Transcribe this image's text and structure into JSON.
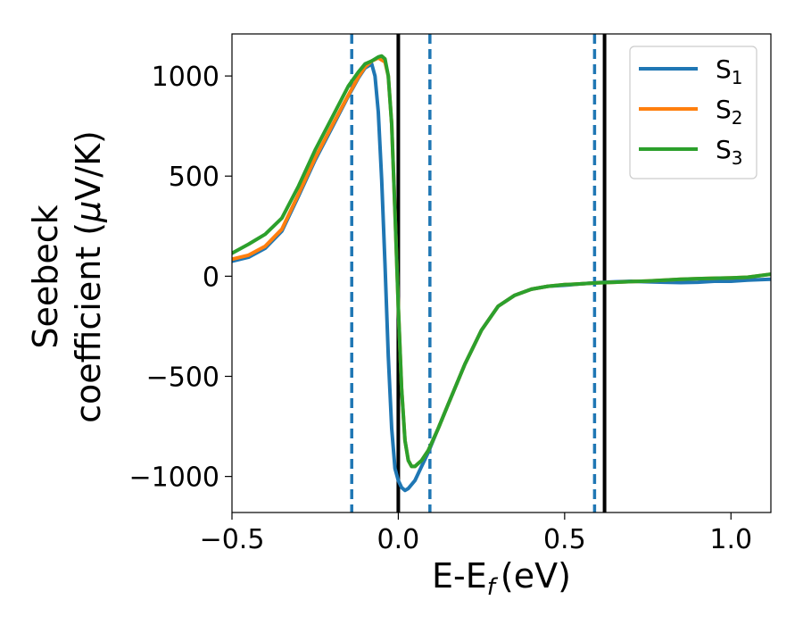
{
  "chart_data": {
    "type": "line",
    "title": "",
    "xlabel": "E-E",
    "xlabel_sub": "f",
    "xlabel_unit": "(eV)",
    "ylabel_line1": "Seebeck",
    "ylabel_line2_prefix": "coefficient  (",
    "ylabel_mu": "μ",
    "ylabel_line2_suffix": "V/K)",
    "xlim": [
      -0.5,
      1.12
    ],
    "ylim": [
      -1180,
      1210
    ],
    "xticks": [
      -0.5,
      0.0,
      0.5,
      1.0
    ],
    "xtick_labels": [
      "−0.5",
      "0.0",
      "0.5",
      "1.0"
    ],
    "yticks": [
      -1000,
      -500,
      0,
      500,
      1000
    ],
    "ytick_labels": [
      "−1000",
      "−500",
      "0",
      "500",
      "1000"
    ],
    "grid": false,
    "legend_position": "top-right",
    "vlines": [
      {
        "x": -0.14,
        "style": "dashed",
        "color": "#1f77b4"
      },
      {
        "x": 0.0,
        "style": "solid",
        "color": "#000000"
      },
      {
        "x": 0.095,
        "style": "dashed",
        "color": "#1f77b4"
      },
      {
        "x": 0.59,
        "style": "dashed",
        "color": "#1f77b4"
      },
      {
        "x": 0.62,
        "style": "solid",
        "color": "#000000"
      }
    ],
    "series": [
      {
        "name": "S",
        "sub": "1",
        "color": "#1f77b4",
        "x": [
          -0.5,
          -0.45,
          -0.4,
          -0.35,
          -0.3,
          -0.25,
          -0.2,
          -0.15,
          -0.12,
          -0.1,
          -0.08,
          -0.07,
          -0.06,
          -0.05,
          -0.04,
          -0.03,
          -0.02,
          -0.01,
          0.0,
          0.01,
          0.02,
          0.03,
          0.05,
          0.07,
          0.09,
          0.1,
          0.15,
          0.2,
          0.25,
          0.3,
          0.35,
          0.4,
          0.45,
          0.5,
          0.55,
          0.6,
          0.65,
          0.7,
          0.75,
          0.8,
          0.85,
          0.9,
          0.95,
          1.0,
          1.05,
          1.12
        ],
        "y": [
          75,
          95,
          140,
          225,
          400,
          580,
          740,
          900,
          990,
          1040,
          1060,
          1000,
          820,
          480,
          60,
          -400,
          -760,
          -960,
          -1020,
          -1055,
          -1070,
          -1060,
          -1020,
          -950,
          -880,
          -840,
          -640,
          -440,
          -270,
          -150,
          -95,
          -65,
          -50,
          -45,
          -38,
          -32,
          -28,
          -25,
          -28,
          -30,
          -32,
          -30,
          -25,
          -25,
          -20,
          -15
        ]
      },
      {
        "name": "S",
        "sub": "2",
        "color": "#ff7f0e",
        "x": [
          -0.5,
          -0.45,
          -0.4,
          -0.35,
          -0.3,
          -0.25,
          -0.2,
          -0.15,
          -0.12,
          -0.1,
          -0.08,
          -0.06,
          -0.04,
          -0.03,
          -0.02,
          -0.01,
          0.0,
          0.01,
          0.02,
          0.03,
          0.04,
          0.05,
          0.07,
          0.09,
          0.12,
          0.15,
          0.2,
          0.25,
          0.3,
          0.35,
          0.4,
          0.45,
          0.5,
          0.55,
          0.6,
          0.65,
          0.7,
          0.75,
          0.8,
          0.85,
          0.9,
          0.95,
          1.0,
          1.05,
          1.12
        ],
        "y": [
          85,
          105,
          150,
          235,
          410,
          590,
          750,
          905,
          995,
          1045,
          1075,
          1090,
          1070,
          1000,
          760,
          320,
          -150,
          -560,
          -820,
          -920,
          -950,
          -950,
          -920,
          -870,
          -760,
          -640,
          -440,
          -270,
          -150,
          -95,
          -65,
          -50,
          -42,
          -38,
          -33,
          -30,
          -27,
          -24,
          -20,
          -15,
          -12,
          -10,
          -8,
          -5,
          10
        ]
      },
      {
        "name": "S",
        "sub": "3",
        "color": "#2ca02c",
        "x": [
          -0.5,
          -0.45,
          -0.4,
          -0.35,
          -0.3,
          -0.25,
          -0.2,
          -0.15,
          -0.12,
          -0.1,
          -0.08,
          -0.06,
          -0.05,
          -0.04,
          -0.03,
          -0.02,
          -0.01,
          0.0,
          0.01,
          0.02,
          0.03,
          0.04,
          0.05,
          0.07,
          0.09,
          0.12,
          0.15,
          0.2,
          0.25,
          0.3,
          0.35,
          0.4,
          0.45,
          0.5,
          0.55,
          0.6,
          0.65,
          0.7,
          0.75,
          0.8,
          0.85,
          0.9,
          0.95,
          1.0,
          1.05,
          1.12
        ],
        "y": [
          115,
          160,
          210,
          290,
          450,
          630,
          790,
          950,
          1020,
          1060,
          1075,
          1095,
          1100,
          1085,
          1000,
          760,
          320,
          -150,
          -560,
          -820,
          -920,
          -950,
          -950,
          -920,
          -870,
          -760,
          -640,
          -440,
          -270,
          -150,
          -95,
          -65,
          -50,
          -42,
          -38,
          -33,
          -30,
          -27,
          -24,
          -20,
          -15,
          -12,
          -10,
          -8,
          -5,
          10
        ]
      }
    ]
  }
}
